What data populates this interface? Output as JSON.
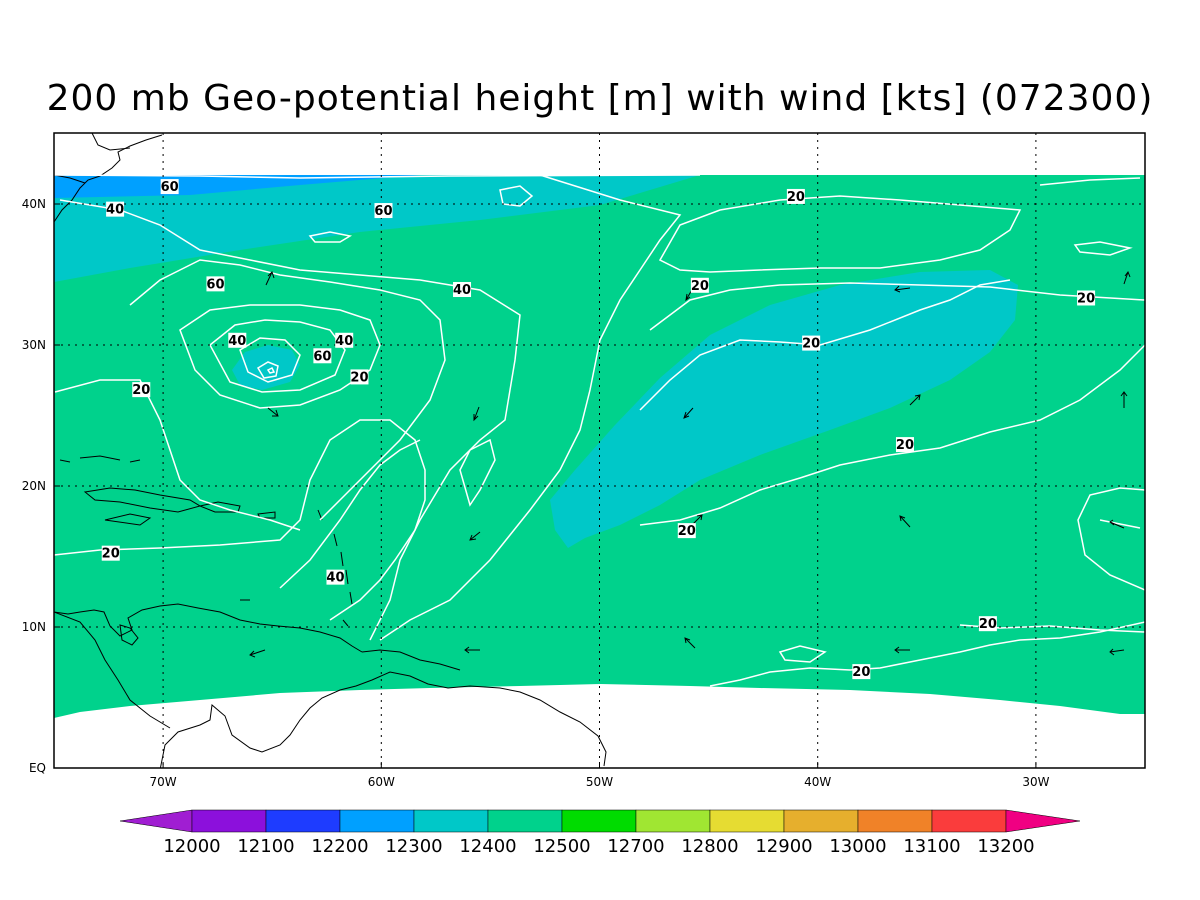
{
  "title": "200 mb Geo-potential height [m] with wind [kts] (072300)",
  "map": {
    "lon_range": [
      -75,
      -25
    ],
    "lat_range": [
      0,
      45
    ],
    "lon_ticks": [
      {
        "value": -70,
        "label": "70W"
      },
      {
        "value": -60,
        "label": "60W"
      },
      {
        "value": -50,
        "label": "50W"
      },
      {
        "value": -40,
        "label": "40W"
      },
      {
        "value": -30,
        "label": "30W"
      }
    ],
    "lat_ticks": [
      {
        "value": 0,
        "label": "EQ"
      },
      {
        "value": 10,
        "label": "10N"
      },
      {
        "value": 20,
        "label": "20N"
      },
      {
        "value": 30,
        "label": "30N"
      },
      {
        "value": 40,
        "label": "40N"
      }
    ],
    "grid": "dotted",
    "contour_labels": [
      {
        "text": "60",
        "lon": -69.7,
        "lat": 41.2
      },
      {
        "text": "40",
        "lon": -72.2,
        "lat": 39.6
      },
      {
        "text": "60",
        "lon": -59.9,
        "lat": 39.5
      },
      {
        "text": "20",
        "lon": -41.0,
        "lat": 40.5
      },
      {
        "text": "60",
        "lon": -67.6,
        "lat": 34.3
      },
      {
        "text": "40",
        "lon": -56.3,
        "lat": 33.9
      },
      {
        "text": "20",
        "lon": -45.4,
        "lat": 34.2
      },
      {
        "text": "20",
        "lon": -27.7,
        "lat": 33.3
      },
      {
        "text": "40",
        "lon": -66.6,
        "lat": 30.3
      },
      {
        "text": "40",
        "lon": -61.7,
        "lat": 30.3
      },
      {
        "text": "60",
        "lon": -62.7,
        "lat": 29.2
      },
      {
        "text": "20",
        "lon": -40.3,
        "lat": 30.1
      },
      {
        "text": "20",
        "lon": -61.0,
        "lat": 27.7
      },
      {
        "text": "20",
        "lon": -71.0,
        "lat": 26.8
      },
      {
        "text": "20",
        "lon": -36.0,
        "lat": 22.9
      },
      {
        "text": "20",
        "lon": -72.4,
        "lat": 15.2
      },
      {
        "text": "20",
        "lon": -46.0,
        "lat": 16.8
      },
      {
        "text": "40",
        "lon": -62.1,
        "lat": 13.5
      },
      {
        "text": "20",
        "lon": -32.2,
        "lat": 10.2
      },
      {
        "text": "20",
        "lon": -38.0,
        "lat": 6.8
      }
    ]
  },
  "colorbar": {
    "labels": [
      "12000",
      "12100",
      "12200",
      "12300",
      "12400",
      "12500",
      "12700",
      "12800",
      "12900",
      "13000",
      "13100",
      "13200"
    ],
    "colors": [
      "#a01ed2",
      "#8c10dc",
      "#1e3cff",
      "#00a0ff",
      "#00c8c8",
      "#00d28c",
      "#00dc00",
      "#a0e632",
      "#e6dc32",
      "#e6af2d",
      "#f08228",
      "#fa3c3c",
      "#f00082"
    ]
  }
}
